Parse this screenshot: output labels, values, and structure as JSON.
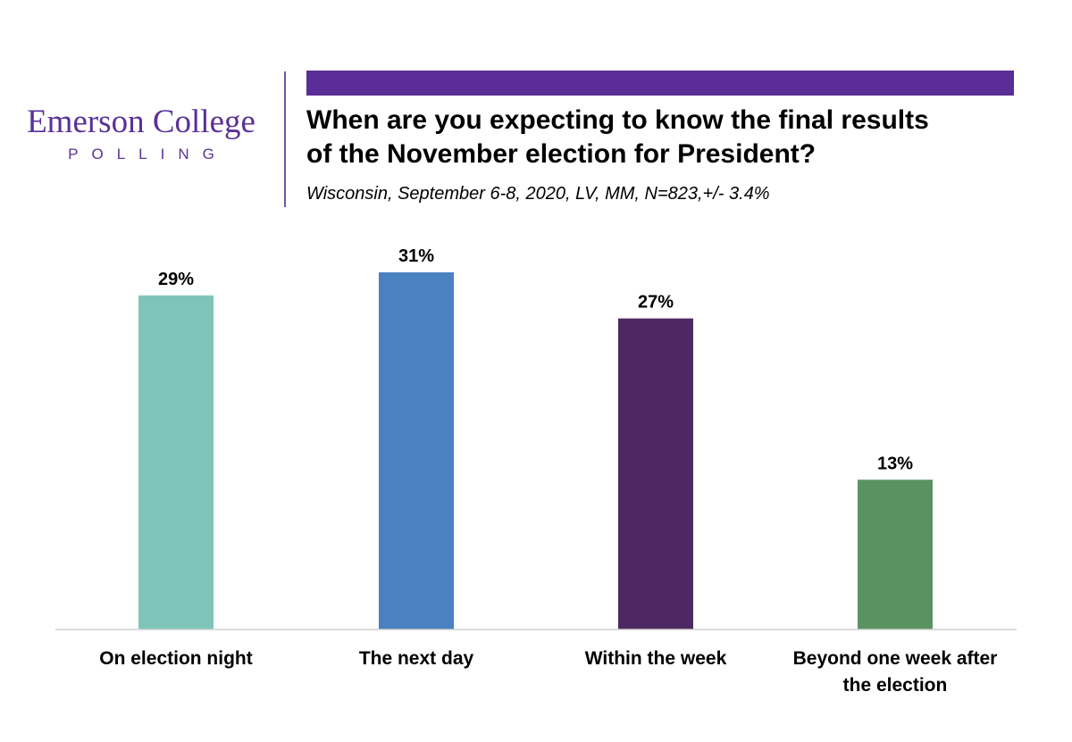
{
  "header": {
    "logo_name": "Emerson College",
    "logo_sub": "POLLING",
    "title_line1": "When are you expecting to know the final results",
    "title_line2": "of the November election for President?",
    "subtitle": "Wisconsin, September 6-8, 2020, LV, MM,  N=823,+/-  3.4%"
  },
  "colors": {
    "brand": "#5b2d96",
    "axis": "#d0d0d0"
  },
  "chart_data": {
    "type": "bar",
    "title": "When are you expecting to know the final results of the November election for President?",
    "categories": [
      [
        "On election night"
      ],
      [
        "The next day"
      ],
      [
        "Within the week"
      ],
      [
        "Beyond one week after",
        "the election"
      ]
    ],
    "values": [
      29,
      31,
      27,
      13
    ],
    "value_labels": [
      "29%",
      "31%",
      "27%",
      "13%"
    ],
    "colors": [
      "#7fc4b8",
      "#4a81c0",
      "#4e2862",
      "#5a9262"
    ],
    "xlabel": "",
    "ylabel": "",
    "ylim": [
      0,
      35
    ],
    "grid": false,
    "legend": "none"
  }
}
